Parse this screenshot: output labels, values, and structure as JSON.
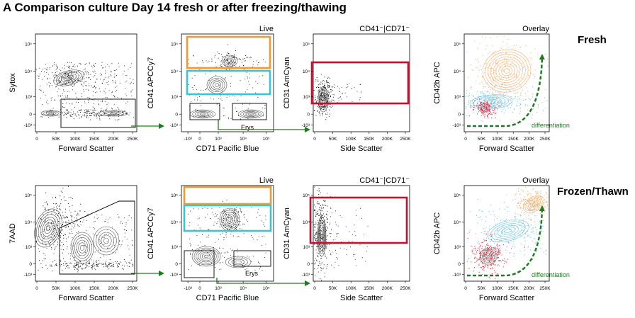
{
  "title": "A Comparison culture Day 14 fresh or after freezing/thawing",
  "row_labels": [
    "Fresh",
    "Frozen/Thawn"
  ],
  "panel_titles": [
    "",
    "Live",
    "CD41⁻|CD71⁻",
    "Overlay"
  ],
  "gate_label": "Erys",
  "annotation": "differentiation",
  "colors": {
    "orange": "#f39a2e",
    "cyan": "#36c5da",
    "crimson": "#c8102e",
    "arrow": "#1e7b1e",
    "overlay_orange": "#f5b273",
    "overlay_blue": "#6fc4e6",
    "overlay_red": "#e0263b",
    "contour": "#555555"
  },
  "axis_ticks": {
    "linear_k": [
      "0",
      "50K",
      "100K",
      "150K",
      "200K",
      "250K"
    ],
    "side_scatter": [
      "0",
      "50K",
      "100K",
      "150K",
      "200K",
      "250K"
    ],
    "log": [
      "-10³",
      "0",
      "10³",
      "10⁴",
      "10⁵"
    ]
  },
  "chart_data": [
    {
      "type": "scatter",
      "row": "Fresh",
      "panel": 1,
      "xlabel": "Forward Scatter",
      "ylabel": "Sytox",
      "x_scale": "linear",
      "y_scale": "biexponential",
      "xlim": [
        0,
        262144
      ]
    },
    {
      "type": "scatter",
      "row": "Fresh",
      "panel": 2,
      "title": "Live",
      "xlabel": "CD71 Pacific Blue",
      "ylabel": "CD41 APCCy7",
      "x_scale": "biexponential",
      "y_scale": "biexponential",
      "gates": [
        "orange",
        "cyan",
        "Erys"
      ]
    },
    {
      "type": "scatter",
      "row": "Fresh",
      "panel": 3,
      "title": "CD41⁻|CD71⁻",
      "xlabel": "Side Scatter",
      "ylabel": "CD31 AmCyan",
      "x_scale": "linear",
      "y_scale": "biexponential",
      "gates": [
        "crimson"
      ]
    },
    {
      "type": "scatter",
      "row": "Fresh",
      "panel": 4,
      "title": "Overlay",
      "xlabel": "Forward Scatter",
      "ylabel": "CD42b APC",
      "x_scale": "linear",
      "y_scale": "biexponential",
      "annotation": "differentiation"
    },
    {
      "type": "scatter",
      "row": "Frozen/Thawn",
      "panel": 1,
      "xlabel": "Forward Scatter",
      "ylabel": "7AAD",
      "x_scale": "linear",
      "y_scale": "biexponential"
    },
    {
      "type": "scatter",
      "row": "Frozen/Thawn",
      "panel": 2,
      "title": "Live",
      "xlabel": "CD71 Pacific Blue",
      "ylabel": "CD41 APCCy7",
      "x_scale": "biexponential",
      "y_scale": "biexponential",
      "gates": [
        "orange",
        "cyan",
        "Erys"
      ]
    },
    {
      "type": "scatter",
      "row": "Frozen/Thawn",
      "panel": 3,
      "title": "CD41⁻|CD71⁻",
      "xlabel": "Side Scatter",
      "ylabel": "CD31 AmCyan",
      "x_scale": "linear",
      "y_scale": "biexponential",
      "gates": [
        "crimson"
      ]
    },
    {
      "type": "scatter",
      "row": "Frozen/Thawn",
      "panel": 4,
      "title": "Overlay",
      "xlabel": "Forward Scatter",
      "ylabel": "CD42b APC",
      "x_scale": "linear",
      "y_scale": "biexponential",
      "annotation": "differentiation"
    }
  ]
}
